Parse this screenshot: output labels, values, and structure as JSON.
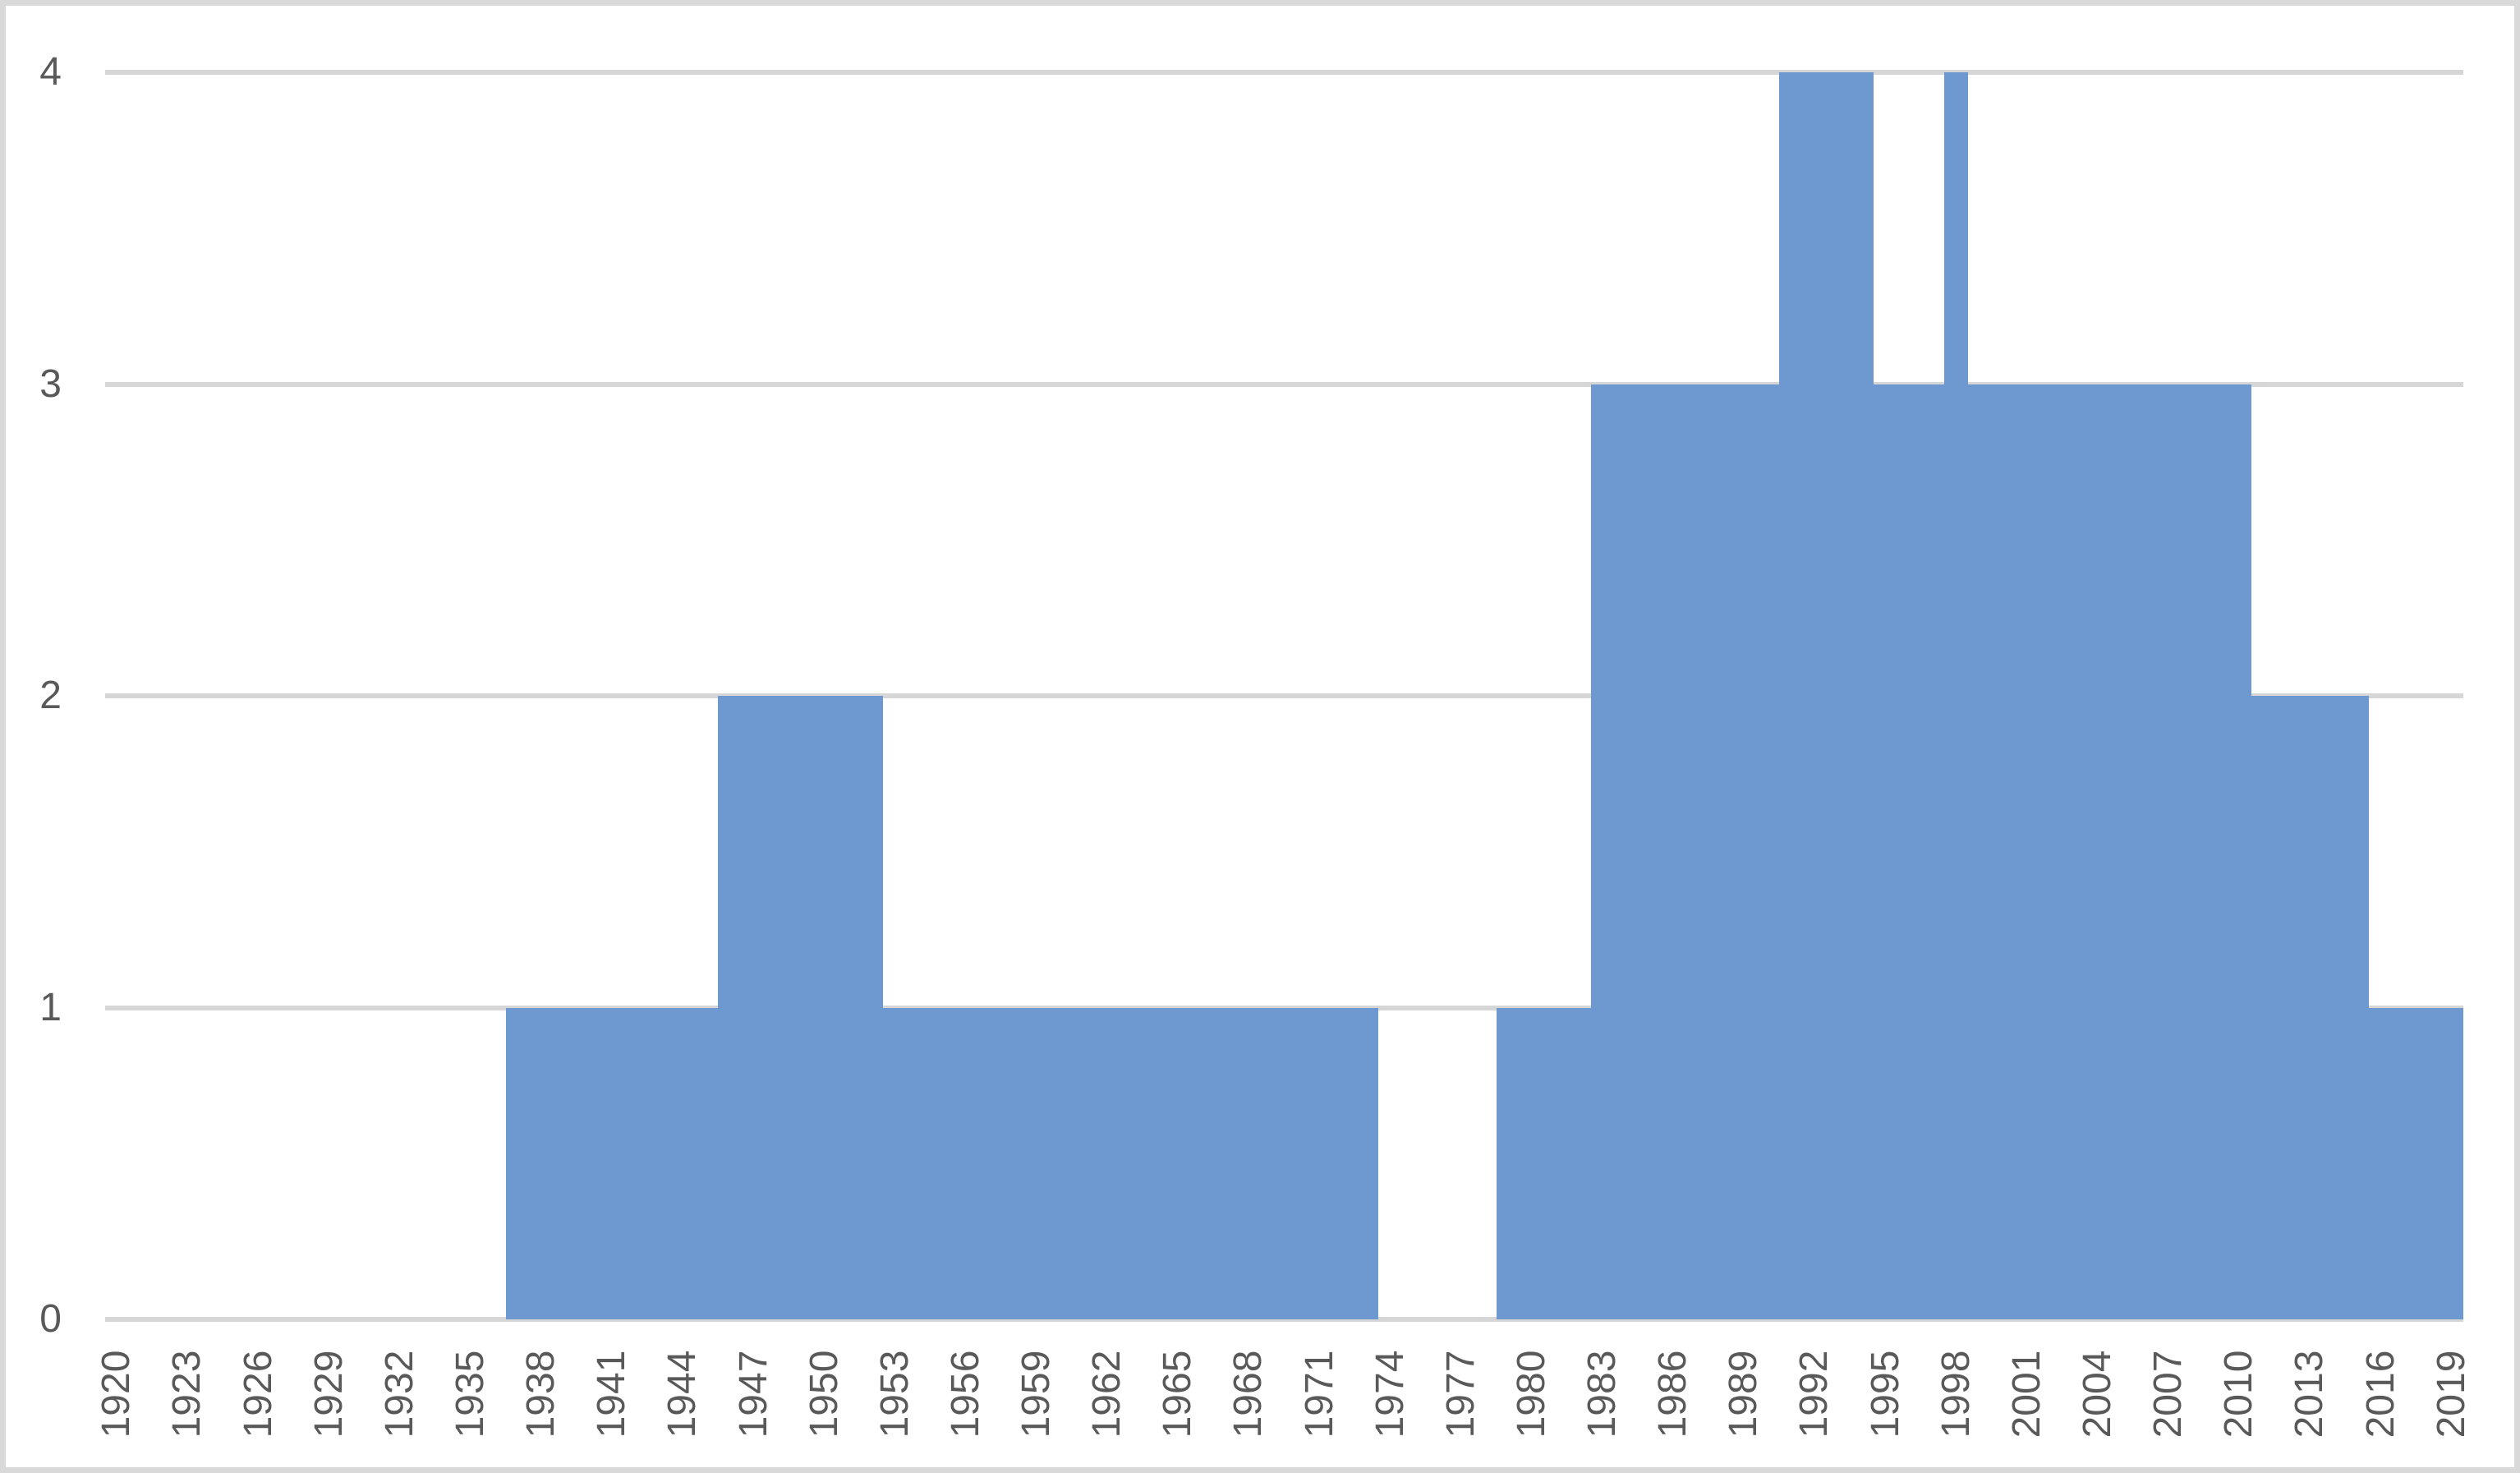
{
  "chart": {
    "title": "",
    "background_color": "#FFFFFF",
    "frame_border_color": "#D9D9D9",
    "bar_color": "#6E98D0",
    "gridline_color": "#D6D6D6",
    "axis_label_color": "#595959",
    "y_axis_tick_labels": [
      "0",
      "1",
      "2",
      "3",
      "4"
    ],
    "x_axis_tick_labels": [
      "1920",
      "1923",
      "1926",
      "1929",
      "1932",
      "1935",
      "1938",
      "1941",
      "1944",
      "1947",
      "1950",
      "1953",
      "1956",
      "1959",
      "1962",
      "1965",
      "1968",
      "1971",
      "1974",
      "1977",
      "1980",
      "1983",
      "1986",
      "1989",
      "1992",
      "1995",
      "1998",
      "2001",
      "2004",
      "2007",
      "2010",
      "2013",
      "2016",
      "2019"
    ]
  },
  "chart_data": {
    "type": "bar",
    "title": "",
    "xlabel": "",
    "ylabel": "",
    "ylim": [
      0,
      4
    ],
    "y_ticks": [
      0,
      1,
      2,
      3,
      4
    ],
    "grid": "horizontal",
    "legend": "none",
    "bar_gap": 0,
    "x_tick_step": 3,
    "categories": [
      1920,
      1921,
      1922,
      1923,
      1924,
      1925,
      1926,
      1927,
      1928,
      1929,
      1930,
      1931,
      1932,
      1933,
      1934,
      1935,
      1936,
      1937,
      1938,
      1939,
      1940,
      1941,
      1942,
      1943,
      1944,
      1945,
      1946,
      1947,
      1948,
      1949,
      1950,
      1951,
      1952,
      1953,
      1954,
      1955,
      1956,
      1957,
      1958,
      1959,
      1960,
      1961,
      1962,
      1963,
      1964,
      1965,
      1966,
      1967,
      1968,
      1969,
      1970,
      1971,
      1972,
      1973,
      1974,
      1975,
      1976,
      1977,
      1978,
      1979,
      1980,
      1981,
      1982,
      1983,
      1984,
      1985,
      1986,
      1987,
      1988,
      1989,
      1990,
      1991,
      1992,
      1993,
      1994,
      1995,
      1996,
      1997,
      1998,
      1999,
      2000,
      2001,
      2002,
      2003,
      2004,
      2005,
      2006,
      2007,
      2008,
      2009,
      2010,
      2011,
      2012,
      2013,
      2014,
      2015,
      2016,
      2017,
      2018,
      2019
    ],
    "values": [
      0,
      0,
      0,
      0,
      0,
      0,
      0,
      0,
      0,
      0,
      0,
      0,
      0,
      0,
      0,
      0,
      0,
      1,
      1,
      1,
      1,
      1,
      1,
      1,
      1,
      1,
      2,
      2,
      2,
      2,
      2,
      2,
      2,
      1,
      1,
      1,
      1,
      1,
      1,
      1,
      1,
      1,
      1,
      1,
      1,
      1,
      1,
      1,
      1,
      1,
      1,
      1,
      1,
      1,
      0,
      0,
      0,
      0,
      0,
      1,
      1,
      1,
      1,
      3,
      3,
      3,
      3,
      3,
      3,
      3,
      3,
      4,
      4,
      4,
      4,
      3,
      3,
      3,
      4,
      3,
      3,
      3,
      3,
      3,
      3,
      3,
      3,
      3,
      3,
      3,
      3,
      2,
      2,
      2,
      2,
      2,
      1,
      1,
      1,
      1
    ]
  }
}
